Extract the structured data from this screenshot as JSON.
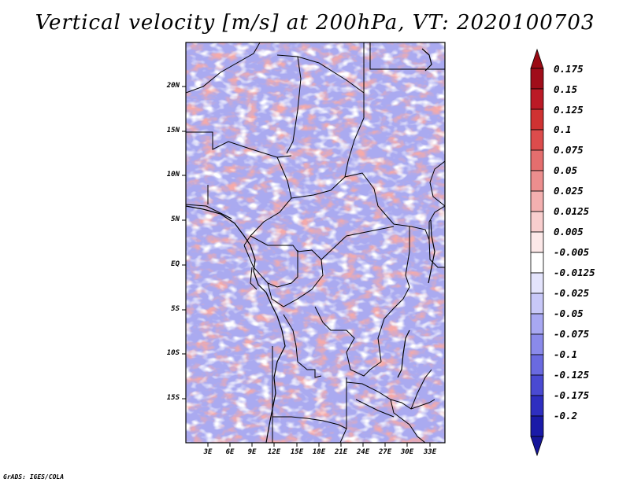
{
  "title": "Vertical velocity [m/s] at 200hPa, VT: 2020100703",
  "credit": "GrADS: IGES/COLA",
  "map": {
    "region": "Central Africa",
    "variable": "vertical velocity",
    "units": "m/s",
    "level": "200hPa",
    "valid_time": "2020100703",
    "lon_range": [
      0,
      35
    ],
    "lat_range": [
      -20,
      25
    ],
    "lat_ticks": [
      {
        "value": 20,
        "label": "20N"
      },
      {
        "value": 15,
        "label": "15N"
      },
      {
        "value": 10,
        "label": "10N"
      },
      {
        "value": 5,
        "label": "5N"
      },
      {
        "value": 0,
        "label": "EQ"
      },
      {
        "value": -5,
        "label": "5S"
      },
      {
        "value": -10,
        "label": "10S"
      },
      {
        "value": -15,
        "label": "15S"
      }
    ],
    "lon_ticks": [
      {
        "value": 3,
        "label": "3E"
      },
      {
        "value": 6,
        "label": "6E"
      },
      {
        "value": 9,
        "label": "9E"
      },
      {
        "value": 12,
        "label": "12E"
      },
      {
        "value": 15,
        "label": "15E"
      },
      {
        "value": 18,
        "label": "18E"
      },
      {
        "value": 21,
        "label": "21E"
      },
      {
        "value": 24,
        "label": "24E"
      },
      {
        "value": 27,
        "label": "27E"
      },
      {
        "value": 30,
        "label": "30E"
      },
      {
        "value": 33,
        "label": "33E"
      }
    ]
  },
  "colorbar": {
    "levels": [
      {
        "label": "0.175",
        "color": "#a00d1a"
      },
      {
        "label": "0.15",
        "color": "#bb1a26"
      },
      {
        "label": "0.125",
        "color": "#cf3232"
      },
      {
        "label": "0.1",
        "color": "#dc4c4c"
      },
      {
        "label": "0.075",
        "color": "#e46e6e"
      },
      {
        "label": "0.05",
        "color": "#ec8e8e"
      },
      {
        "label": "0.025",
        "color": "#f3b0b0"
      },
      {
        "label": "0.0125",
        "color": "#f8cece"
      },
      {
        "label": "0.005",
        "color": "#fce8e8"
      },
      {
        "label": "-0.005",
        "color": "#ffffff"
      },
      {
        "label": "-0.0125",
        "color": "#e4e4fc"
      },
      {
        "label": "-0.025",
        "color": "#c8c8f8"
      },
      {
        "label": "-0.05",
        "color": "#a8a8f2"
      },
      {
        "label": "-0.075",
        "color": "#8a8aea"
      },
      {
        "label": "-0.1",
        "color": "#6a6ae0"
      },
      {
        "label": "-0.125",
        "color": "#4a4ad2"
      },
      {
        "label": "-0.175",
        "color": "#2e2ec0"
      },
      {
        "label": "-0.2",
        "color": "#1a1aa8"
      }
    ],
    "top_color": "#9a0a14",
    "bottom_color": "#16169a"
  }
}
